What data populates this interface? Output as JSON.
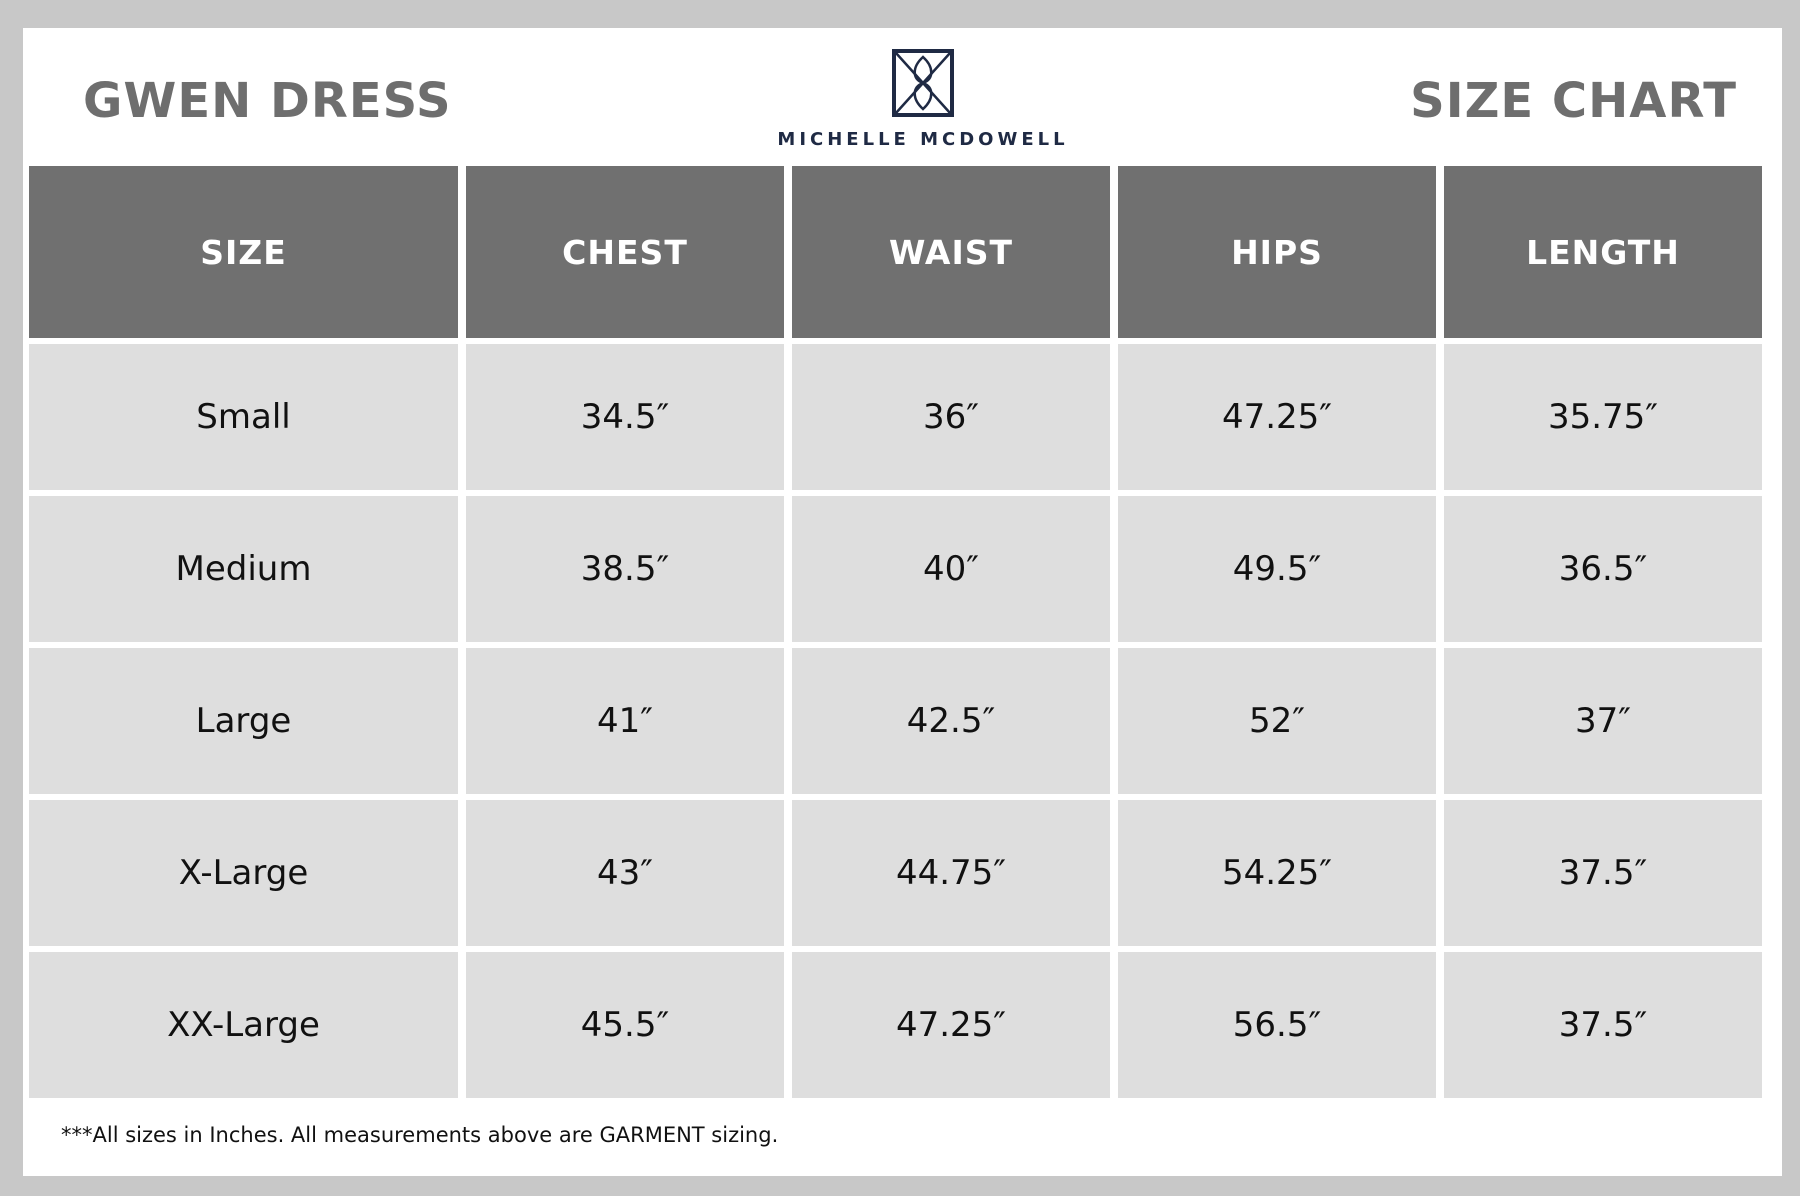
{
  "header": {
    "title_left": "GWEN DRESS",
    "title_right": "SIZE CHART",
    "brand": "MICHELLE MCDOWELL",
    "logo_icon": "monogram-logo-icon",
    "brand_color": "#1f2a44"
  },
  "table": {
    "columns": [
      "SIZE",
      "CHEST",
      "WAIST",
      "HIPS",
      "LENGTH"
    ],
    "rows": [
      [
        "Small",
        "34.5″",
        "36″",
        "47.25″",
        "35.75″"
      ],
      [
        "Medium",
        "38.5″",
        "40″",
        "49.5″",
        "36.5″"
      ],
      [
        "Large",
        "41″",
        "42.5″",
        "52″",
        "37″"
      ],
      [
        "X-Large",
        "43″",
        "44.75″",
        "54.25″",
        "37.5″"
      ],
      [
        "XX-Large",
        "45.5″",
        "47.25″",
        "56.5″",
        "37.5″"
      ]
    ],
    "header_color": "#707070",
    "cell_color": "#dedede"
  },
  "footnote": "***All sizes in Inches. All measurements above are GARMENT sizing."
}
